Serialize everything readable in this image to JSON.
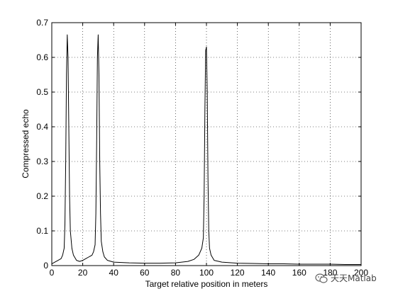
{
  "chart_data": {
    "type": "line",
    "title": "",
    "xlabel": "Target relative position in meters",
    "ylabel": "Compressed echo",
    "xlim": [
      0,
      200
    ],
    "ylim": [
      0,
      0.7
    ],
    "xticks": [
      0,
      20,
      40,
      60,
      80,
      100,
      120,
      140,
      160,
      180,
      200
    ],
    "yticks": [
      0,
      0.1,
      0.2,
      0.3,
      0.4,
      0.5,
      0.6,
      0.7
    ],
    "grid": true,
    "grid_style": "dotted",
    "series": [
      {
        "color": "#000000",
        "x": [
          0,
          2,
          4,
          6,
          7,
          8,
          8.5,
          9,
          9.5,
          10,
          10.5,
          11,
          11.5,
          12,
          13,
          14,
          16,
          18,
          20,
          22,
          24,
          26,
          27,
          28,
          28.5,
          29,
          29.5,
          30,
          30.5,
          31,
          31.5,
          32,
          33,
          34,
          36,
          40,
          50,
          60,
          70,
          80,
          88,
          92,
          95,
          97,
          98,
          98.5,
          99,
          99.5,
          100,
          100.5,
          101,
          101.5,
          102,
          103,
          105,
          110,
          120,
          130,
          140,
          150,
          160,
          170,
          180,
          190,
          200
        ],
        "y": [
          0.005,
          0.01,
          0.015,
          0.02,
          0.03,
          0.05,
          0.12,
          0.3,
          0.55,
          0.665,
          0.6,
          0.4,
          0.2,
          0.1,
          0.05,
          0.03,
          0.015,
          0.012,
          0.015,
          0.02,
          0.025,
          0.03,
          0.04,
          0.06,
          0.15,
          0.35,
          0.6,
          0.665,
          0.55,
          0.3,
          0.15,
          0.07,
          0.04,
          0.025,
          0.015,
          0.01,
          0.008,
          0.007,
          0.007,
          0.008,
          0.012,
          0.018,
          0.03,
          0.05,
          0.08,
          0.2,
          0.45,
          0.62,
          0.63,
          0.5,
          0.25,
          0.1,
          0.05,
          0.03,
          0.015,
          0.01,
          0.007,
          0.006,
          0.005,
          0.005,
          0.004,
          0.004,
          0.004,
          0.003,
          0.003
        ]
      }
    ]
  },
  "watermark": {
    "text": "天天Matlab"
  }
}
